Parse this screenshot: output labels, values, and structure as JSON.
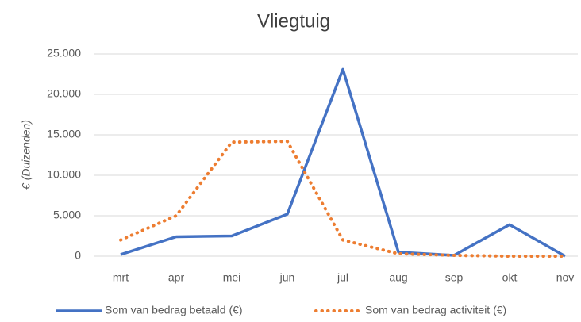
{
  "chart_data": {
    "type": "line",
    "title": "Vliegtuig",
    "y_label": "€ (Duizenden)",
    "categories": [
      "mrt",
      "apr",
      "mei",
      "jun",
      "jul",
      "aug",
      "sep",
      "okt",
      "nov"
    ],
    "series": [
      {
        "name": "Som van bedrag betaald (€)",
        "color": "#4472c4",
        "style": "solid",
        "values": [
          200,
          2400,
          2500,
          5200,
          23100,
          500,
          100,
          3900,
          0
        ]
      },
      {
        "name": "Som van bedrag activiteit (€)",
        "color": "#ed7d31",
        "style": "dotted",
        "values": [
          2000,
          5000,
          14100,
          14200,
          2000,
          300,
          100,
          0,
          0
        ]
      }
    ],
    "ylim": [
      0,
      25000
    ],
    "yticks": [
      0,
      {
        "value": 5000,
        "label": "5.000"
      },
      {
        "value": 10000,
        "label": "10.000"
      },
      {
        "value": 15000,
        "label": "15.000"
      },
      {
        "value": 20000,
        "label": "20.000"
      },
      {
        "value": 25000,
        "label": "25.000"
      }
    ],
    "grid": true,
    "legend": "bottom"
  }
}
